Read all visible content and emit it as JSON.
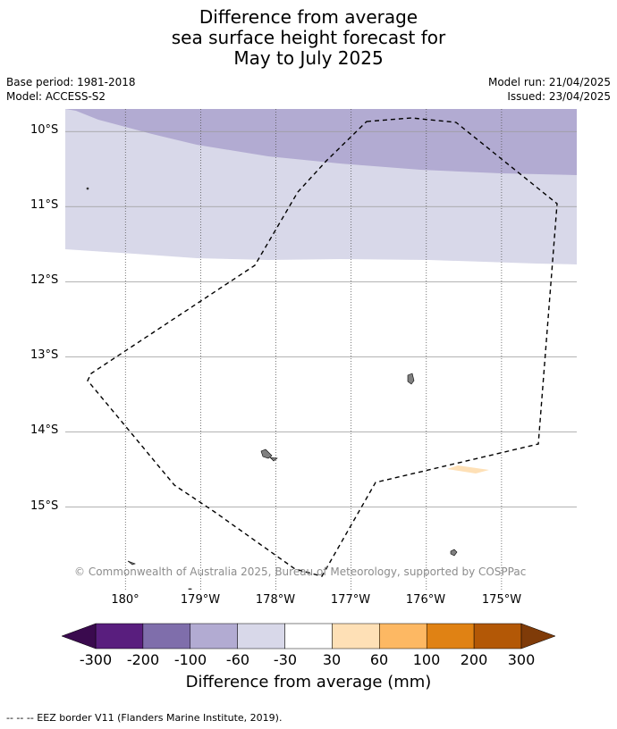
{
  "title_lines": [
    "Difference from average",
    "sea surface height forecast for",
    "May to July 2025"
  ],
  "base_period": "Base period: 1981-2018",
  "model": "Model: ACCESS-S2",
  "model_run": "Model run: 21/04/2025",
  "issued": "Issued: 23/04/2025",
  "map": {
    "lon_range": [
      -180.8,
      -174.0
    ],
    "lat_range": [
      -9.7,
      -16.1
    ],
    "lat_ticks": [
      {
        "value": -10,
        "label": "10°S"
      },
      {
        "value": -11,
        "label": "11°S"
      },
      {
        "value": -12,
        "label": "12°S"
      },
      {
        "value": -13,
        "label": "13°S"
      },
      {
        "value": -14,
        "label": "14°S"
      },
      {
        "value": -15,
        "label": "15°S"
      }
    ],
    "lon_ticks": [
      {
        "value": -180,
        "label": "180°"
      },
      {
        "value": -179,
        "label": "179°W"
      },
      {
        "value": -178,
        "label": "178°W"
      },
      {
        "value": -177,
        "label": "177°W"
      },
      {
        "value": -176,
        "label": "176°W"
      },
      {
        "value": -175,
        "label": "175°W"
      }
    ],
    "fill_colors": {
      "-100to-60": "#b2abd2",
      "-60to-30": "#d8d8e9",
      "30to60": "#fee0b6"
    },
    "land_color": "#808080",
    "copyright": "© Commonwealth of Australia 2025, Bureau of Meteorology, supported by COSPPac"
  },
  "colorbar": {
    "labels": [
      "-300",
      "-200",
      "-100",
      "-60",
      "-30",
      "30",
      "60",
      "100",
      "200",
      "300"
    ],
    "colors": [
      "#591e7e",
      "#7f6eab",
      "#b2abd2",
      "#d8d8e9",
      "#ffffff",
      "#fee0b6",
      "#fdb863",
      "#e08214",
      "#b35806"
    ],
    "under_color": "#3a0a4e",
    "over_color": "#7f3b08",
    "title": "Difference from average (mm)"
  },
  "footer": "--  --  -- EEZ border V11 (Flanders Marine Institute, 2019)."
}
